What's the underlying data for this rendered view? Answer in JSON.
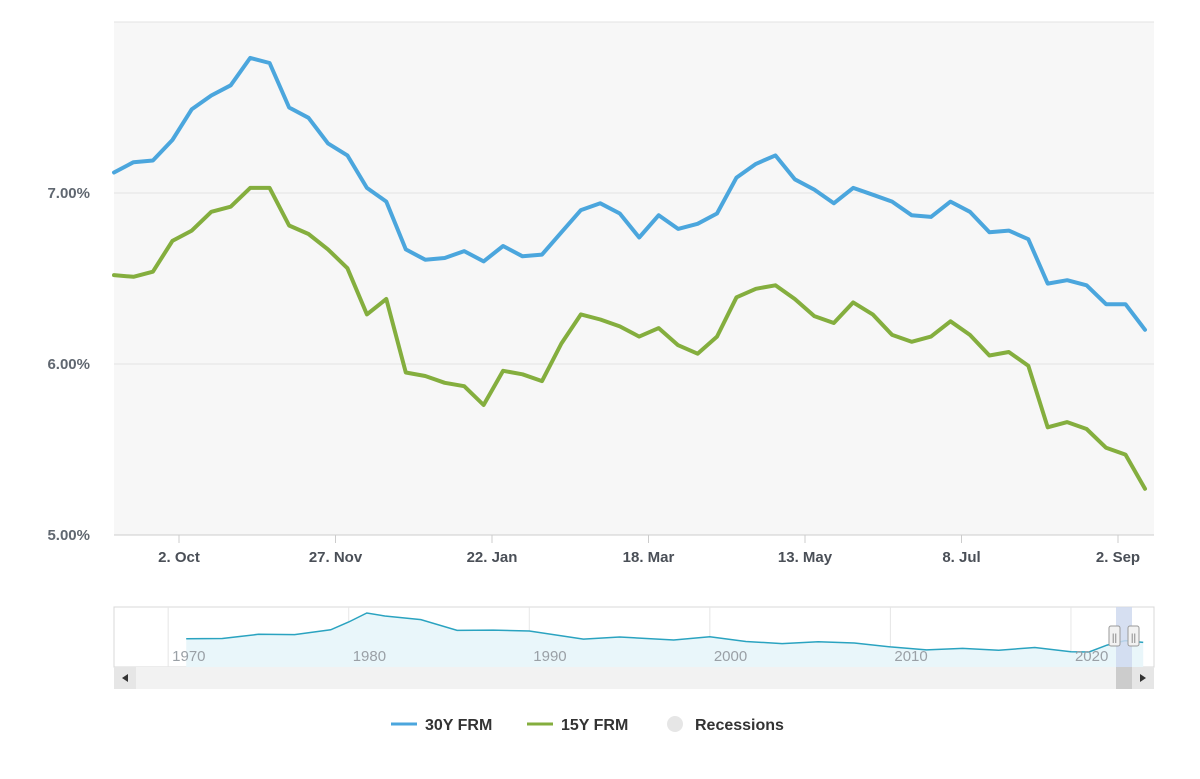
{
  "chart_data": {
    "type": "line",
    "title": "",
    "xlabel": "",
    "ylabel": "",
    "y_ticks": [
      "5.00%",
      "6.00%",
      "7.00%"
    ],
    "ylim": [
      5.0,
      8.0
    ],
    "grid": true,
    "x_ticks": [
      "2. Oct",
      "27. Nov",
      "22. Jan",
      "18. Mar",
      "13. May",
      "8. Jul",
      "2. Sep"
    ],
    "legend_position": "bottom",
    "series": [
      {
        "name": "30Y FRM",
        "color": "#4ba6dd",
        "values": [
          7.12,
          7.18,
          7.19,
          7.31,
          7.49,
          7.57,
          7.63,
          7.79,
          7.76,
          7.5,
          7.44,
          7.29,
          7.22,
          7.03,
          6.95,
          6.67,
          6.61,
          6.62,
          6.66,
          6.6,
          6.69,
          6.63,
          6.64,
          6.77,
          6.9,
          6.94,
          6.88,
          6.74,
          6.87,
          6.79,
          6.82,
          6.88,
          7.09,
          7.17,
          7.22,
          7.08,
          7.02,
          6.94,
          7.03,
          6.99,
          6.95,
          6.87,
          6.86,
          6.95,
          6.89,
          6.77,
          6.78,
          6.73,
          6.47,
          6.49,
          6.46,
          6.35,
          6.35,
          6.2
        ]
      },
      {
        "name": "15Y FRM",
        "color": "#84ae3e",
        "values": [
          6.52,
          6.51,
          6.54,
          6.72,
          6.78,
          6.89,
          6.92,
          7.03,
          7.03,
          6.81,
          6.76,
          6.67,
          6.56,
          6.29,
          6.38,
          5.95,
          5.93,
          5.89,
          5.87,
          5.76,
          5.96,
          5.94,
          5.9,
          6.12,
          6.29,
          6.26,
          6.22,
          6.16,
          6.21,
          6.11,
          6.06,
          6.16,
          6.39,
          6.44,
          6.46,
          6.38,
          6.28,
          6.24,
          6.36,
          6.29,
          6.17,
          6.13,
          6.16,
          6.25,
          6.17,
          6.05,
          6.07,
          5.99,
          5.63,
          5.66,
          5.62,
          5.51,
          5.47,
          5.27
        ]
      }
    ],
    "legend": [
      {
        "label": "30Y FRM",
        "color": "#4ba6dd",
        "kind": "line"
      },
      {
        "label": "15Y FRM",
        "color": "#84ae3e",
        "kind": "line"
      },
      {
        "label": "Recessions",
        "color": "#e6e6e6",
        "kind": "circle"
      }
    ],
    "navigator": {
      "x_ticks": [
        "1970",
        "1980",
        "1990",
        "2000",
        "2010",
        "2020"
      ],
      "line_color": "#2aa3c0",
      "fill_color": "#e9f6fa",
      "years": [
        1971,
        1973,
        1975,
        1977,
        1979,
        1980,
        1981,
        1982,
        1984,
        1986,
        1988,
        1990,
        1993,
        1995,
        1998,
        2000,
        2002,
        2004,
        2006,
        2008,
        2010,
        2012,
        2014,
        2016,
        2018,
        2020,
        2021,
        2022,
        2023,
        2024
      ],
      "rates": [
        7.4,
        7.5,
        8.9,
        8.8,
        10.4,
        13.0,
        16.0,
        15.0,
        13.8,
        10.2,
        10.3,
        10.0,
        7.3,
        8.0,
        7.0,
        8.1,
        6.5,
        5.8,
        6.4,
        6.0,
        4.7,
        3.7,
        4.2,
        3.6,
        4.5,
        3.1,
        3.0,
        5.3,
        6.8,
        6.2
      ],
      "selection_label": "||"
    }
  }
}
